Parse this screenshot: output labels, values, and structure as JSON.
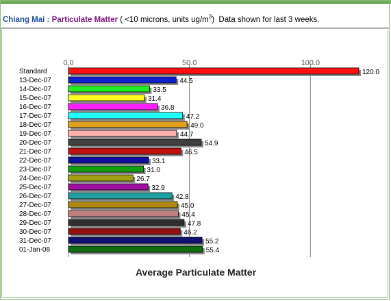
{
  "header": {
    "city": "Chiang Mai :",
    "metric": "Particulate Matter",
    "units_prefix": "( <10 microns, units ug/m",
    "units_sup": "3",
    "units_suffix": ")",
    "note": "Data shown for last 3 weeks."
  },
  "chart_data": {
    "type": "bar",
    "orientation": "horizontal",
    "title": "Average Particulate Matter",
    "xlabel": "",
    "ylabel": "",
    "xlim": [
      0,
      120
    ],
    "ticks": [
      0,
      50,
      100
    ],
    "tick_labels": [
      "0.0",
      "50.0",
      "100.0"
    ],
    "grid": true,
    "categories": [
      "Standard",
      "13-Dec-07",
      "14-Dec-07",
      "15-Dec-07",
      "16-Dec-07",
      "17-Dec-07",
      "18-Dec-07",
      "19-Dec-07",
      "20-Dec-07",
      "21-Dec-07",
      "22-Dec-07",
      "23-Dec-07",
      "24-Dec-07",
      "25-Dec-07",
      "26-Dec-07",
      "27-Dec-07",
      "28-Dec-07",
      "29-Dec-07",
      "30-Dec-07",
      "31-Dec-07",
      "01-Jan-08"
    ],
    "values": [
      120.0,
      44.5,
      33.5,
      31.4,
      36.8,
      47.2,
      49.0,
      44.7,
      54.9,
      46.5,
      33.1,
      31.0,
      26.7,
      32.9,
      42.8,
      45.0,
      45.4,
      47.8,
      46.2,
      55.2,
      55.4
    ],
    "value_labels": [
      "120.0",
      "44.5",
      "33.5",
      "31.4",
      "36.8",
      "47.2",
      "49.0",
      "44.7",
      "54.9",
      "46.5",
      "33.1",
      "31.0",
      "26.7",
      "32.9",
      "42.8",
      "45.0",
      "45.4",
      "47.8",
      "46.2",
      "55.2",
      "55.4"
    ],
    "colors": [
      "#ff1010",
      "#1020d0",
      "#20ee20",
      "#ffff20",
      "#ff20ff",
      "#20ffff",
      "#e0a020",
      "#ffb0b0",
      "#404040",
      "#c01010",
      "#1010a0",
      "#10a010",
      "#a0a010",
      "#a010a0",
      "#20a0a0",
      "#b08a10",
      "#c08080",
      "#303030",
      "#901010",
      "#101070",
      "#107010"
    ]
  }
}
